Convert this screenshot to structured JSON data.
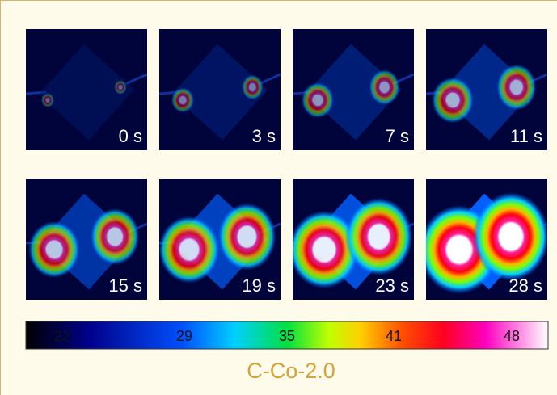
{
  "frames": {
    "labels": [
      "0 s",
      "3 s",
      "7 s",
      "11 s",
      "15 s",
      "19 s",
      "23 s",
      "28 s"
    ]
  },
  "colorbar": {
    "labels": [
      22,
      29,
      35,
      41,
      48
    ]
  },
  "caption": "C-Co-2.0"
}
